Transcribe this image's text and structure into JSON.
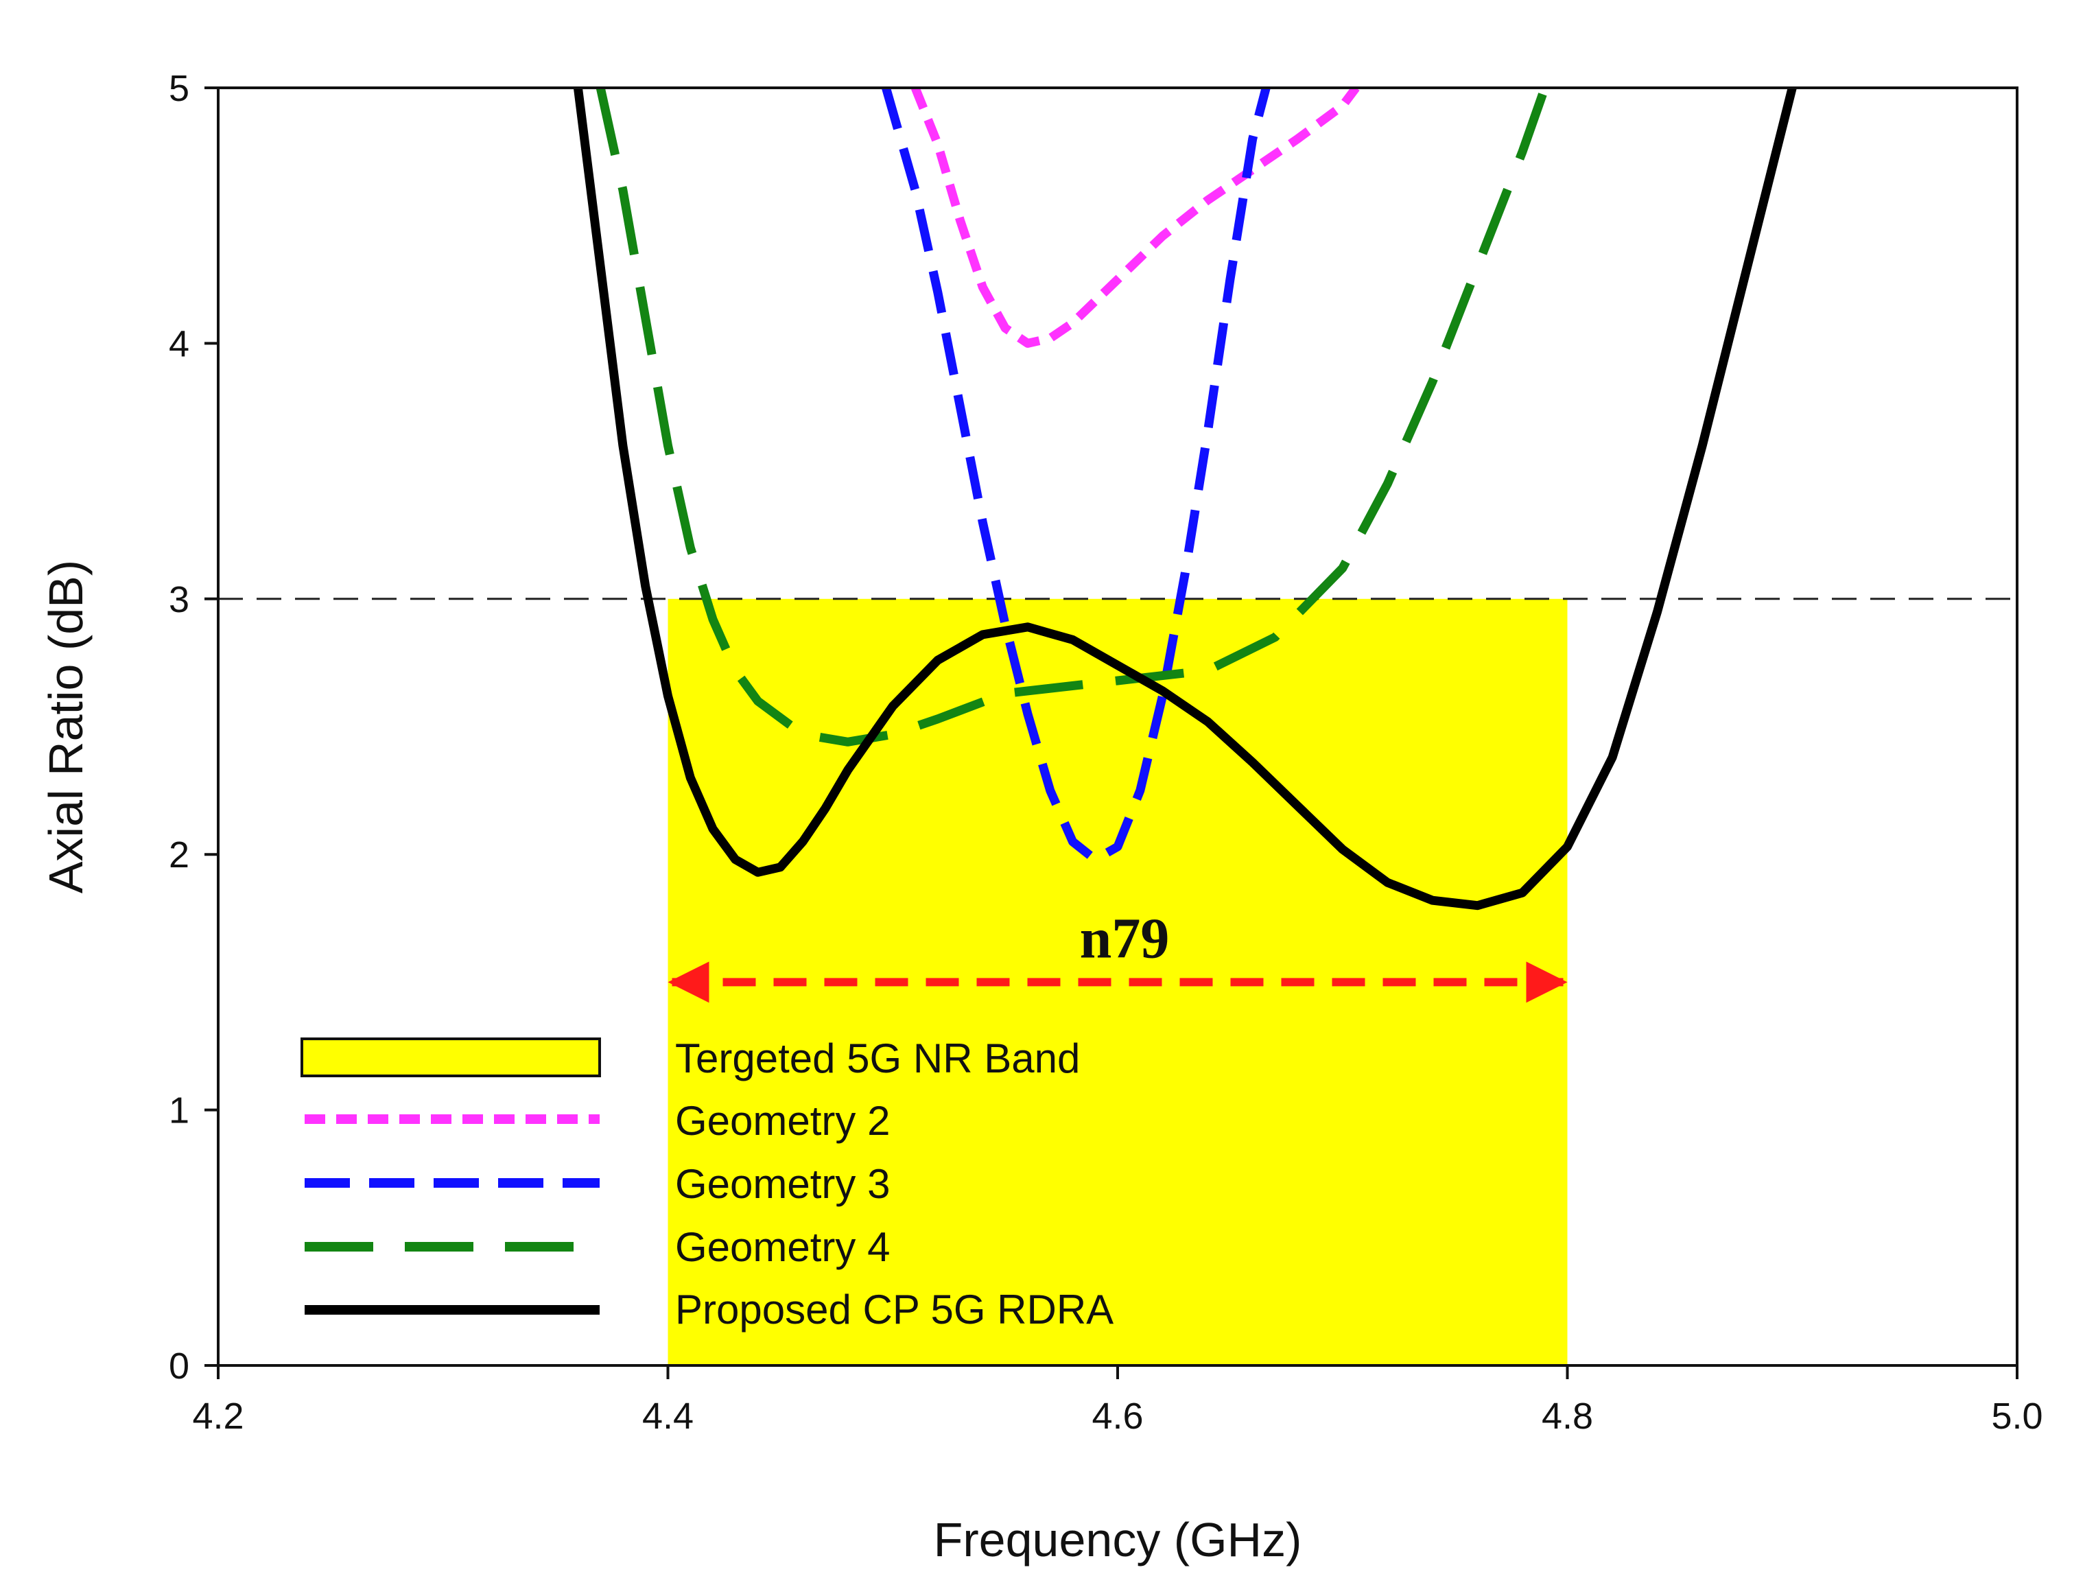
{
  "chart_data": {
    "type": "line",
    "xlabel": "Frequency (GHz)",
    "ylabel": "Axial Ratio (dB)",
    "xlim": [
      4.2,
      5.0
    ],
    "ylim": [
      0,
      5
    ],
    "xticks": [
      "4.2",
      "4.4",
      "4.6",
      "4.8",
      "5.0"
    ],
    "yticks": [
      "0",
      "1",
      "2",
      "3",
      "4",
      "5"
    ],
    "reference_line": {
      "y": 3
    },
    "band": {
      "name": "Tergeted 5G NR Band",
      "x0": 4.4,
      "x1": 4.8,
      "y0": 0,
      "y1": 3,
      "color": "#ffff00"
    },
    "annotation": {
      "text": "n79",
      "x0": 4.4,
      "x1": 4.8,
      "y": 1.5,
      "color": "#ff1a1a"
    },
    "series": [
      {
        "name": "Geometry 2",
        "color": "#ff33ff",
        "dash": "short",
        "x": [
          4.51,
          4.52,
          4.53,
          4.54,
          4.55,
          4.56,
          4.57,
          4.58,
          4.6,
          4.62,
          4.64,
          4.66,
          4.68,
          4.7,
          4.706
        ],
        "y": [
          5.0,
          4.78,
          4.48,
          4.22,
          4.06,
          4.0,
          4.02,
          4.08,
          4.25,
          4.42,
          4.56,
          4.68,
          4.8,
          4.93,
          5.0
        ]
      },
      {
        "name": "Geometry 3",
        "color": "#1010ff",
        "dash": "medium",
        "x": [
          4.497,
          4.51,
          4.52,
          4.53,
          4.54,
          4.55,
          4.56,
          4.57,
          4.58,
          4.59,
          4.6,
          4.61,
          4.62,
          4.63,
          4.64,
          4.65,
          4.66,
          4.666
        ],
        "y": [
          5.0,
          4.6,
          4.2,
          3.75,
          3.3,
          2.9,
          2.55,
          2.25,
          2.05,
          1.98,
          2.03,
          2.25,
          2.62,
          3.1,
          3.65,
          4.25,
          4.8,
          5.0
        ]
      },
      {
        "name": "Geometry 4",
        "color": "#138513",
        "dash": "long",
        "x": [
          4.37,
          4.38,
          4.39,
          4.4,
          4.41,
          4.42,
          4.43,
          4.44,
          4.46,
          4.48,
          4.5,
          4.52,
          4.55,
          4.6,
          4.64,
          4.67,
          4.7,
          4.72,
          4.74,
          4.76,
          4.78,
          4.79
        ],
        "y": [
          5.0,
          4.6,
          4.1,
          3.6,
          3.2,
          2.92,
          2.72,
          2.6,
          2.47,
          2.44,
          2.47,
          2.53,
          2.63,
          2.68,
          2.72,
          2.85,
          3.12,
          3.45,
          3.85,
          4.3,
          4.75,
          5.0
        ]
      },
      {
        "name": "Proposed CP 5G RDRA",
        "color": "#000000",
        "dash": "solid",
        "x": [
          4.36,
          4.37,
          4.38,
          4.39,
          4.4,
          4.41,
          4.42,
          4.43,
          4.44,
          4.45,
          4.46,
          4.47,
          4.48,
          4.5,
          4.52,
          4.54,
          4.56,
          4.58,
          4.6,
          4.62,
          4.64,
          4.66,
          4.68,
          4.7,
          4.72,
          4.74,
          4.76,
          4.78,
          4.8,
          4.82,
          4.84,
          4.86,
          4.88,
          4.9
        ],
        "y": [
          5.0,
          4.3,
          3.6,
          3.05,
          2.62,
          2.3,
          2.1,
          1.98,
          1.93,
          1.95,
          2.05,
          2.18,
          2.33,
          2.58,
          2.76,
          2.86,
          2.89,
          2.84,
          2.74,
          2.64,
          2.52,
          2.36,
          2.19,
          2.02,
          1.89,
          1.82,
          1.8,
          1.85,
          2.03,
          2.38,
          2.95,
          3.6,
          4.3,
          5.0
        ]
      }
    ],
    "legend": {
      "position": "bottom-left",
      "entries": [
        "Tergeted 5G NR Band",
        "Geometry 2",
        "Geometry 3",
        "Geometry 4",
        "Proposed CP 5G RDRA"
      ]
    }
  }
}
